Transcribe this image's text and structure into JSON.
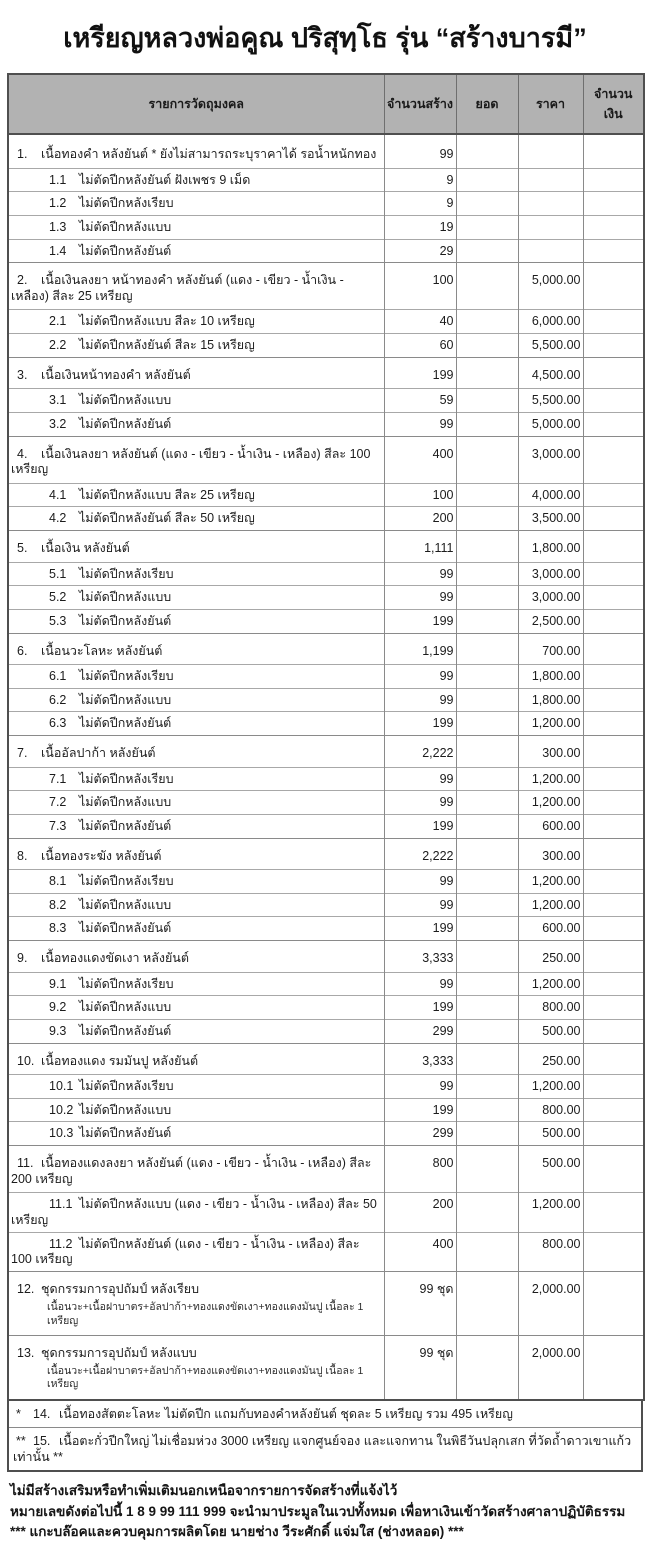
{
  "title": "เหรียญหลวงพ่อคูณ ปริสุทฺโธ รุ่น “สร้างบารมี”",
  "table": {
    "headers": {
      "desc": "รายการวัดถุมงคล",
      "qty": "จำนวนสร้าง",
      "total": "ยอด",
      "price": "ราคา",
      "amount": "จำนวนเงิน"
    },
    "rows": [
      {
        "no": "1.",
        "type": "main",
        "desc": "เนื้อทองคำ หลังยันต์  * ยังไม่สามารถระบุราคาได้ รอน้ำหนักทอง",
        "qty": "99",
        "total": "",
        "price": "",
        "amount": ""
      },
      {
        "no": "1.1",
        "type": "sub",
        "desc": "ไม่ตัดปีกหลังยันต์ ฝังเพชร 9 เม็ด",
        "qty": "9",
        "total": "",
        "price": "",
        "amount": ""
      },
      {
        "no": "1.2",
        "type": "sub",
        "desc": "ไม่ตัดปีกหลังเรียบ",
        "qty": "9",
        "total": "",
        "price": "",
        "amount": ""
      },
      {
        "no": "1.3",
        "type": "sub",
        "desc": "ไม่ตัดปีกหลังแบบ",
        "qty": "19",
        "total": "",
        "price": "",
        "amount": ""
      },
      {
        "no": "1.4",
        "type": "sub",
        "desc": "ไม่ตัดปีกหลังยันต์",
        "qty": "29",
        "total": "",
        "price": "",
        "amount": ""
      },
      {
        "no": "2.",
        "type": "main",
        "desc": "เนื้อเงินลงยา หน้าทองคำ หลังยันต์ (แดง - เขียว - น้ำเงิน - เหลือง)  สีละ 25 เหรียญ",
        "qty": "100",
        "total": "",
        "price": "5,000.00",
        "amount": ""
      },
      {
        "no": "2.1",
        "type": "sub",
        "desc": "ไม่ตัดปีกหลังแบบ สีละ 10 เหรียญ",
        "qty": "40",
        "total": "",
        "price": "6,000.00",
        "amount": ""
      },
      {
        "no": "2.2",
        "type": "sub",
        "desc": "ไม่ตัดปีกหลังยันต์ สีละ 15 เหรียญ",
        "qty": "60",
        "total": "",
        "price": "5,500.00",
        "amount": ""
      },
      {
        "no": "3.",
        "type": "main",
        "desc": "เนื้อเงินหน้าทองคำ หลังยันต์",
        "qty": "199",
        "total": "",
        "price": "4,500.00",
        "amount": ""
      },
      {
        "no": "3.1",
        "type": "sub",
        "desc": "ไม่ตัดปีกหลังแบบ",
        "qty": "59",
        "total": "",
        "price": "5,500.00",
        "amount": ""
      },
      {
        "no": "3.2",
        "type": "sub",
        "desc": "ไม่ตัดปีกหลังยันต์",
        "qty": "99",
        "total": "",
        "price": "5,000.00",
        "amount": ""
      },
      {
        "no": "4.",
        "type": "main",
        "desc": "เนื้อเงินลงยา หลังยันต์ (แดง - เขียว - น้ำเงิน - เหลือง) สีละ 100 เหรียญ",
        "qty": "400",
        "total": "",
        "price": "3,000.00",
        "amount": ""
      },
      {
        "no": "4.1",
        "type": "sub",
        "desc": "ไม่ตัดปีกหลังแบบ สีละ 25 เหรียญ",
        "qty": "100",
        "total": "",
        "price": "4,000.00",
        "amount": ""
      },
      {
        "no": "4.2",
        "type": "sub",
        "desc": "ไม่ตัดปีกหลังยันต์ สีละ 50 เหรียญ",
        "qty": "200",
        "total": "",
        "price": "3,500.00",
        "amount": ""
      },
      {
        "no": "5.",
        "type": "main",
        "desc": "เนื้อเงิน หลังยันต์",
        "qty": "1,111",
        "total": "",
        "price": "1,800.00",
        "amount": ""
      },
      {
        "no": "5.1",
        "type": "sub",
        "desc": "ไม่ตัดปีกหลังเรียบ",
        "qty": "99",
        "total": "",
        "price": "3,000.00",
        "amount": ""
      },
      {
        "no": "5.2",
        "type": "sub",
        "desc": "ไม่ตัดปีกหลังแบบ",
        "qty": "99",
        "total": "",
        "price": "3,000.00",
        "amount": ""
      },
      {
        "no": "5.3",
        "type": "sub",
        "desc": "ไม่ตัดปีกหลังยันต์",
        "qty": "199",
        "total": "",
        "price": "2,500.00",
        "amount": ""
      },
      {
        "no": "6.",
        "type": "main",
        "desc": "เนื้อนวะโลหะ หลังยันต์",
        "qty": "1,199",
        "total": "",
        "price": "700.00",
        "amount": ""
      },
      {
        "no": "6.1",
        "type": "sub",
        "desc": "ไม่ตัดปีกหลังเรียบ",
        "qty": "99",
        "total": "",
        "price": "1,800.00",
        "amount": ""
      },
      {
        "no": "6.2",
        "type": "sub",
        "desc": "ไม่ตัดปีกหลังแบบ",
        "qty": "99",
        "total": "",
        "price": "1,800.00",
        "amount": ""
      },
      {
        "no": "6.3",
        "type": "sub",
        "desc": "ไม่ตัดปีกหลังยันต์",
        "qty": "199",
        "total": "",
        "price": "1,200.00",
        "amount": ""
      },
      {
        "no": "7.",
        "type": "main",
        "desc": "เนื้ออัลปาก้า หลังยันต์",
        "qty": "2,222",
        "total": "",
        "price": "300.00",
        "amount": ""
      },
      {
        "no": "7.1",
        "type": "sub",
        "desc": "ไม่ตัดปีกหลังเรียบ",
        "qty": "99",
        "total": "",
        "price": "1,200.00",
        "amount": ""
      },
      {
        "no": "7.2",
        "type": "sub",
        "desc": "ไม่ตัดปีกหลังแบบ",
        "qty": "99",
        "total": "",
        "price": "1,200.00",
        "amount": ""
      },
      {
        "no": "7.3",
        "type": "sub",
        "desc": "ไม่ตัดปีกหลังยันต์",
        "qty": "199",
        "total": "",
        "price": "600.00",
        "amount": ""
      },
      {
        "no": "8.",
        "type": "main",
        "desc": "เนื้อทองระฆัง หลังยันต์",
        "qty": "2,222",
        "total": "",
        "price": "300.00",
        "amount": ""
      },
      {
        "no": "8.1",
        "type": "sub",
        "desc": "ไม่ตัดปีกหลังเรียบ",
        "qty": "99",
        "total": "",
        "price": "1,200.00",
        "amount": ""
      },
      {
        "no": "8.2",
        "type": "sub",
        "desc": "ไม่ตัดปีกหลังแบบ",
        "qty": "99",
        "total": "",
        "price": "1,200.00",
        "amount": ""
      },
      {
        "no": "8.3",
        "type": "sub",
        "desc": "ไม่ตัดปีกหลังยันต์",
        "qty": "199",
        "total": "",
        "price": "600.00",
        "amount": ""
      },
      {
        "no": "9.",
        "type": "main",
        "desc": "เนื้อทองแดงขัดเงา หลังยันต์",
        "qty": "3,333",
        "total": "",
        "price": "250.00",
        "amount": ""
      },
      {
        "no": "9.1",
        "type": "sub",
        "desc": "ไม่ตัดปีกหลังเรียบ",
        "qty": "99",
        "total": "",
        "price": "1,200.00",
        "amount": ""
      },
      {
        "no": "9.2",
        "type": "sub",
        "desc": "ไม่ตัดปีกหลังแบบ",
        "qty": "199",
        "total": "",
        "price": "800.00",
        "amount": ""
      },
      {
        "no": "9.3",
        "type": "sub",
        "desc": "ไม่ตัดปีกหลังยันต์",
        "qty": "299",
        "total": "",
        "price": "500.00",
        "amount": ""
      },
      {
        "no": "10.",
        "type": "main",
        "desc": "เนื้อทองแดง รมมันปู หลังยันต์",
        "qty": "3,333",
        "total": "",
        "price": "250.00",
        "amount": ""
      },
      {
        "no": "10.1",
        "type": "sub",
        "desc": "ไม่ตัดปีกหลังเรียบ",
        "qty": "99",
        "total": "",
        "price": "1,200.00",
        "amount": ""
      },
      {
        "no": "10.2",
        "type": "sub",
        "desc": "ไม่ตัดปีกหลังแบบ",
        "qty": "199",
        "total": "",
        "price": "800.00",
        "amount": ""
      },
      {
        "no": "10.3",
        "type": "sub",
        "desc": "ไม่ตัดปีกหลังยันต์",
        "qty": "299",
        "total": "",
        "price": "500.00",
        "amount": ""
      },
      {
        "no": "11.",
        "type": "main",
        "desc": "เนื้อทองแดงลงยา หลังยันต์ (แดง - เขียว - น้ำเงิน - เหลือง) สีละ 200 เหรียญ",
        "qty": "800",
        "total": "",
        "price": "500.00",
        "amount": ""
      },
      {
        "no": "11.1",
        "type": "sub",
        "desc": "ไม่ตัดปีกหลังแบบ (แดง - เขียว - น้ำเงิน - เหลือง) สีละ 50 เหรียญ",
        "qty": "200",
        "total": "",
        "price": "1,200.00",
        "amount": ""
      },
      {
        "no": "11.2",
        "type": "sub",
        "desc": "ไม่ตัดปีกหลังยันต์ (แดง - เขียว - น้ำเงิน - เหลือง) สีละ 100 เหรียญ",
        "qty": "400",
        "total": "",
        "price": "800.00",
        "amount": ""
      },
      {
        "no": "12.",
        "type": "main",
        "desc": "ชุดกรรมการอุปถัมป์ หลังเรียบ",
        "desc2": "เนื้อนวะ+เนื้อฝาบาตร+อัลปาก้า+ทองแดงขัดเงา+ทองแดงมันปู เนื้อละ 1 เหรียญ",
        "qty": "99 ชุด",
        "total": "",
        "price": "2,000.00",
        "amount": ""
      },
      {
        "no": "13.",
        "type": "main",
        "desc": "ชุดกรรมการอุปถัมป์ หลังแบบ",
        "desc2": "เนื้อนวะ+เนื้อฝาบาตร+อัลปาก้า+ทองแดงขัดเงา+ทองแดงมันปู เนื้อละ 1 เหรียญ",
        "qty": "99 ชุด",
        "total": "",
        "price": "2,000.00",
        "amount": ""
      }
    ],
    "footnote_rows": [
      {
        "mark": "*",
        "no": "14.",
        "desc": "เนื้อทองสัตตะโลหะ ไม่ตัดปีก แถมกับทองคำหลังยันต์ ชุดละ 5 เหรียญ รวม 495 เหรียญ"
      },
      {
        "mark": "**",
        "no": "15.",
        "desc": "เนื้อตะกั่วปีกใหญ่ ไม่เชื่อมห่วง 3000 เหรียญ แจกศูนย์จอง และแจกทาน ในพิธีวันปลุกเสก ที่วัดถ้ำดาวเขาแก้ว เท่านั้น **"
      }
    ]
  },
  "notes": [
    "ไม่มีสร้างเสริมหรือทำเพิ่มเติมนอกเหนือจากรายการจัดสร้างที่แจ้งไว้",
    "หมายเลขดังต่อไปนี้  1 8 9 99 111 999  จะนำมาประมูลในเวปทั้งหมด เพื่อหาเงินเข้าวัดสร้างศาลาปฏิบัติธรรม",
    "*** แกะบล๊อคและควบคุมการผลิตโดย นายช่าง วีระศักดิ์ แจ่มใส (ช่างหลอด) ***"
  ],
  "colors": {
    "header_bg": "#b2b2b2",
    "border_outer": "#4f4f4f",
    "border_inner": "#8a8a8a",
    "text": "#1c1c1c",
    "page_bg": "#ffffff"
  }
}
